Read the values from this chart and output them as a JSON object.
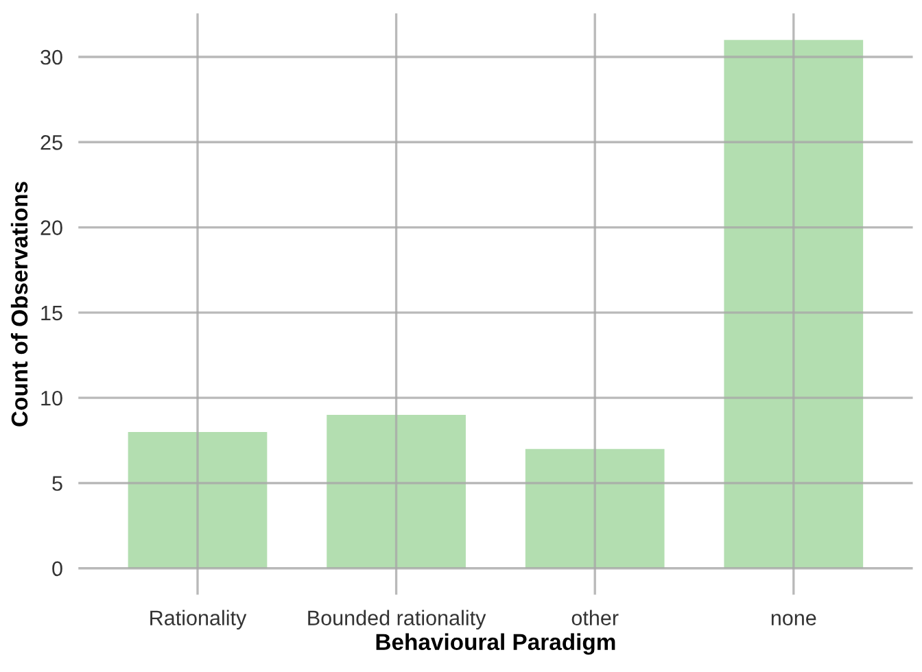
{
  "chart_data": {
    "type": "bar",
    "xlabel": "Behavioural Paradigm",
    "ylabel": "Count of Observations",
    "categories": [
      "Rationality",
      "Bounded rationality",
      "other",
      "none"
    ],
    "values": [
      8,
      9,
      7,
      31
    ],
    "color": "#b3deb0",
    "ylim": [
      -1.55,
      32.55
    ],
    "yticks": [
      0,
      5,
      10,
      15,
      20,
      25,
      30
    ],
    "grid": true
  }
}
